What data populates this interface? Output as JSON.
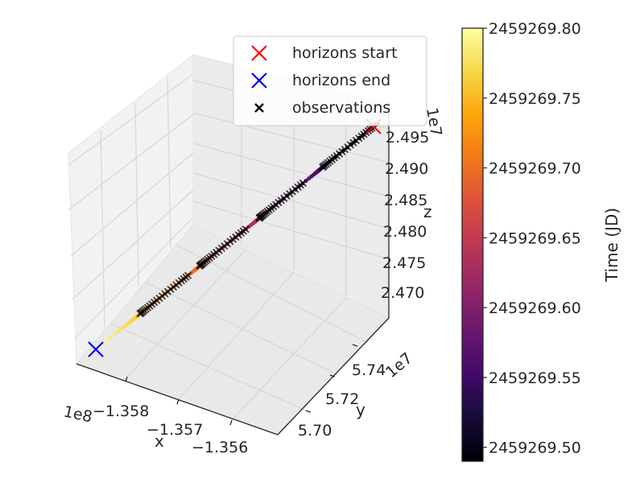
{
  "chart_data": {
    "type": "scatter",
    "projection": "3d",
    "title": "",
    "x": {
      "label": "x",
      "offset_text": "1e8",
      "ticks": [
        -135.8,
        -135.7,
        -135.6
      ],
      "tick_labels": [
        "−1.358",
        "−1.357",
        "−1.356"
      ],
      "range": [
        -135.85,
        -135.55
      ]
    },
    "y": {
      "label": "y",
      "offset_text": "1e7",
      "ticks": [
        5.7,
        5.72,
        5.74
      ],
      "tick_labels": [
        "5.70",
        "5.72",
        "5.74"
      ],
      "range": [
        5.69,
        5.76
      ]
    },
    "z": {
      "label": "z",
      "offset_text": "1e7",
      "ticks": [
        2.47,
        2.475,
        2.48,
        2.485,
        2.49,
        2.495
      ],
      "tick_labels": [
        "2.470",
        "2.475",
        "2.480",
        "2.485",
        "2.490",
        "2.495"
      ],
      "range": [
        2.467,
        2.497
      ]
    },
    "colorbar": {
      "label": "Time (JD)",
      "colormap": "inferno",
      "range": [
        2459269.49,
        2459269.8
      ],
      "ticks": [
        2459269.5,
        2459269.55,
        2459269.6,
        2459269.65,
        2459269.7,
        2459269.75,
        2459269.8
      ],
      "tick_labels": [
        "2459269.50",
        "2459269.55",
        "2459269.60",
        "2459269.65",
        "2459269.70",
        "2459269.75",
        "2459269.80"
      ]
    },
    "legend": {
      "placement": "upper-right",
      "entries": [
        {
          "label": "horizons start",
          "marker": "x",
          "color": "#ff0000"
        },
        {
          "label": "horizons end",
          "marker": "x",
          "color": "#0000ff"
        },
        {
          "label": "observations",
          "marker": "x",
          "color": "#000000"
        }
      ]
    },
    "horizons_start": {
      "t": 2459269.49
    },
    "horizons_end": {
      "t": 2459269.8
    },
    "track": {
      "t_start": 2459269.49,
      "t_end": 2459269.8
    },
    "observation_windows": [
      [
        2459269.5,
        2459269.54
      ],
      [
        2459269.575,
        2459269.615
      ],
      [
        2459269.64,
        2459269.68
      ],
      [
        2459269.705,
        2459269.745
      ]
    ],
    "grid": true
  }
}
